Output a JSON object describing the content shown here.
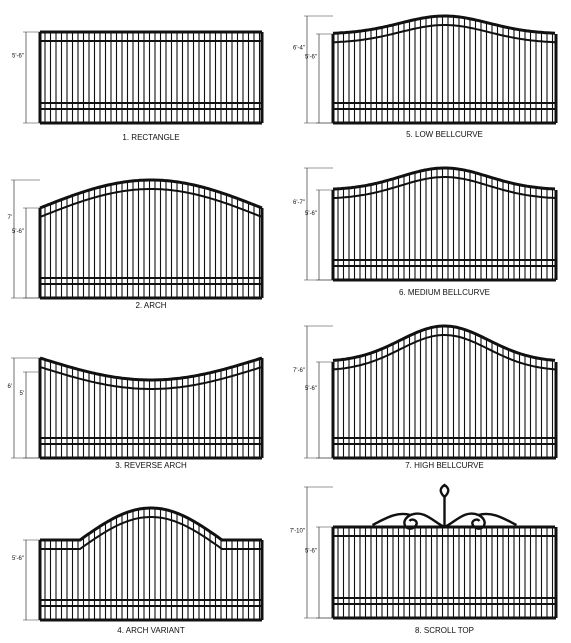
{
  "gates": [
    {
      "caption": "1. RECTANGLE",
      "dims": [
        "5'-6\""
      ]
    },
    {
      "caption": "2. ARCH",
      "dims": [
        "7'",
        "5'-6\""
      ]
    },
    {
      "caption": "3. REVERSE ARCH",
      "dims": [
        "6'",
        "5'"
      ]
    },
    {
      "caption": "4. ARCH VARIANT",
      "dims": [
        "5'-6\""
      ]
    },
    {
      "caption": "5. LOW BELLCURVE",
      "dims": [
        "6'-4\"",
        "5'-6\""
      ]
    },
    {
      "caption": "6. MEDIUM BELLCURVE",
      "dims": [
        "6'-7\"",
        "5'-6\""
      ]
    },
    {
      "caption": "7. HIGH BELLCURVE",
      "dims": [
        "7'-6\"",
        "5'-6\""
      ]
    },
    {
      "caption": "8. SCROLL TOP",
      "dims": [
        "7'-10\"",
        "5'-6\""
      ]
    }
  ]
}
